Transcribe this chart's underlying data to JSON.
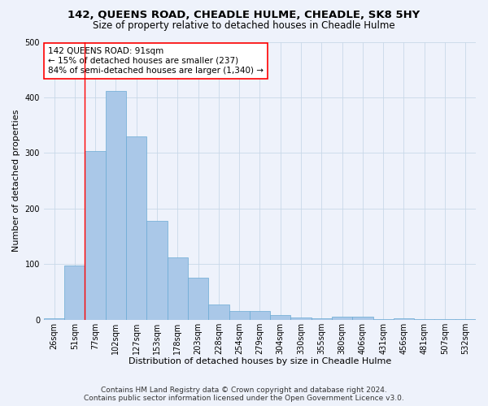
{
  "title": "142, QUEENS ROAD, CHEADLE HULME, CHEADLE, SK8 5HY",
  "subtitle": "Size of property relative to detached houses in Cheadle Hulme",
  "xlabel": "Distribution of detached houses by size in Cheadle Hulme",
  "ylabel": "Number of detached properties",
  "footer_line1": "Contains HM Land Registry data © Crown copyright and database right 2024.",
  "footer_line2": "Contains public sector information licensed under the Open Government Licence v3.0.",
  "bar_labels": [
    "26sqm",
    "51sqm",
    "77sqm",
    "102sqm",
    "127sqm",
    "153sqm",
    "178sqm",
    "203sqm",
    "228sqm",
    "254sqm",
    "279sqm",
    "304sqm",
    "330sqm",
    "355sqm",
    "380sqm",
    "406sqm",
    "431sqm",
    "456sqm",
    "481sqm",
    "507sqm",
    "532sqm"
  ],
  "bar_values": [
    3,
    98,
    303,
    412,
    330,
    178,
    112,
    75,
    28,
    15,
    16,
    9,
    4,
    2,
    5,
    5,
    1,
    3,
    1,
    1,
    1
  ],
  "bar_color": "#aac8e8",
  "bar_edge_color": "#6aaad4",
  "grid_color": "#c8d8e8",
  "vline_x": 1.5,
  "vline_color": "red",
  "annotation_text": "142 QUEENS ROAD: 91sqm\n← 15% of detached houses are smaller (237)\n84% of semi-detached houses are larger (1,340) →",
  "annotation_box_color": "white",
  "annotation_box_edge": "red",
  "ylim": [
    0,
    500
  ],
  "title_fontsize": 9.5,
  "subtitle_fontsize": 8.5,
  "xlabel_fontsize": 8,
  "ylabel_fontsize": 8,
  "tick_fontsize": 7,
  "annotation_fontsize": 7.5,
  "footer_fontsize": 6.5,
  "background_color": "#eef2fb"
}
